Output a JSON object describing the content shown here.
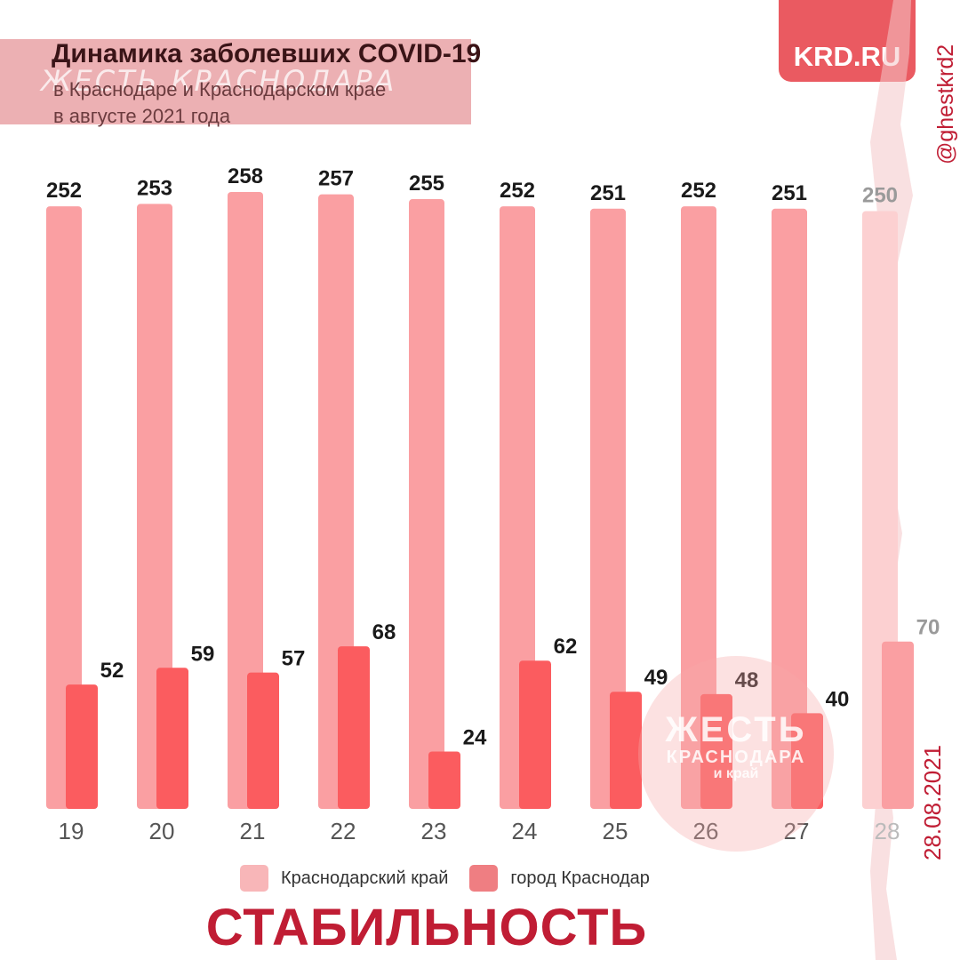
{
  "header": {
    "title": "Динамика заболевших COVID-19",
    "subtitle_line1": "в Краснодаре и Краснодарском крае",
    "subtitle_line2": "в августе 2021 года",
    "watermark": "ЖЕСТЬ КРАСНОДАРА"
  },
  "logo": {
    "text": "KRD.RU"
  },
  "social": {
    "handle": "@ghestkrd2"
  },
  "date": "28.08.2021",
  "slogan": "СТАБИЛЬНОСТЬ",
  "stamp": {
    "line1": "ЖЕСТЬ",
    "line2": "КРАСНОДАРА",
    "line3": "и край"
  },
  "legend": {
    "region_label": "Краснодарский край",
    "city_label": "город Краснодар"
  },
  "colors": {
    "region": "#fa9fa2",
    "city": "#fb5c5f",
    "region_faded": "#fcd0d1",
    "label_dark": "#1a1a1a",
    "label_faded": "#9a9a9a",
    "slogan": "#c01d34",
    "logo_bg": "#ea5a61"
  },
  "chart_data": {
    "type": "bar",
    "title": "Динамика заболевших COVID-19",
    "categories": [
      "19",
      "20",
      "21",
      "22",
      "23",
      "24",
      "25",
      "26",
      "27",
      "28"
    ],
    "series": [
      {
        "name": "Краснодарский край",
        "values": [
          252,
          253,
          258,
          257,
          255,
          252,
          251,
          252,
          251,
          250
        ]
      },
      {
        "name": "город Краснодар",
        "values": [
          52,
          59,
          57,
          68,
          24,
          62,
          49,
          48,
          40,
          70
        ]
      }
    ],
    "faded_categories": [
      "28"
    ],
    "legend_position": "bottom",
    "grid": false
  }
}
